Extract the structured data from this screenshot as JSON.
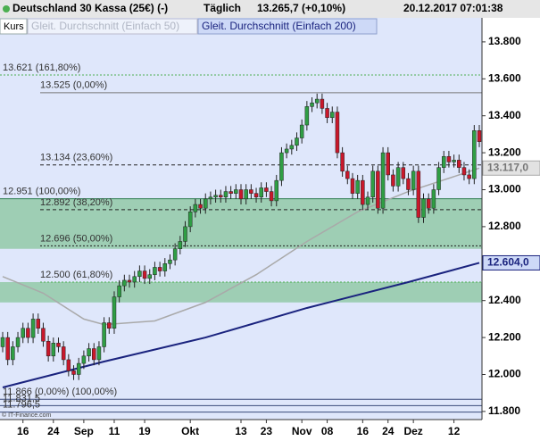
{
  "header": {
    "title": "Deutschland 30 Kassa (25€) (-)",
    "period": "Täglich",
    "quote": "13.265,7 (+0,10%)",
    "timestamp": "20.12.2017 07:01:38"
  },
  "legend": [
    "Kurs",
    "Gleit. Durchschnitt (Einfach 50)",
    "Gleit. Durchschnitt (Einfach 200)"
  ],
  "footer": "© IT-Finance.com",
  "chart_data": {
    "type": "candlestick",
    "ylim": [
      11756,
      13843
    ],
    "yticks": [
      {
        "value": 11800,
        "label": "11.800"
      },
      {
        "value": 12000,
        "label": "12.000"
      },
      {
        "value": 12200,
        "label": "12.200"
      },
      {
        "value": 12400,
        "label": "12.400"
      },
      {
        "value": 12600,
        "label": "12.600"
      },
      {
        "value": 12800,
        "label": "12.800"
      },
      {
        "value": 13000,
        "label": "13.000"
      },
      {
        "value": 13200,
        "label": "13.200"
      },
      {
        "value": 13400,
        "label": "13.400"
      },
      {
        "value": 13600,
        "label": "13.600"
      },
      {
        "value": 13800,
        "label": "13.800"
      }
    ],
    "xticks": [
      {
        "value": 4,
        "label": "16"
      },
      {
        "value": 10,
        "label": "24"
      },
      {
        "value": 16,
        "label": "Sep"
      },
      {
        "value": 22,
        "label": "11"
      },
      {
        "value": 28,
        "label": "19"
      },
      {
        "value": 37,
        "label": "Okt"
      },
      {
        "value": 47,
        "label": "13"
      },
      {
        "value": 52,
        "label": "23"
      },
      {
        "value": 59,
        "label": "Nov"
      },
      {
        "value": 64,
        "label": "08"
      },
      {
        "value": 71,
        "label": "16"
      },
      {
        "value": 76,
        "label": "24"
      },
      {
        "value": 81,
        "label": "Dez"
      },
      {
        "value": 89,
        "label": "12"
      }
    ],
    "up_color": "#2f9e44",
    "down_color": "#c9182b",
    "open": [
      12150,
      12200,
      12080,
      12150,
      12200,
      12250,
      12200,
      12300,
      12250,
      12180,
      12100,
      12170,
      12150,
      12080,
      12020,
      12000,
      12060,
      12100,
      12140,
      12080,
      12150,
      12280,
      12250,
      12420,
      12480,
      12510,
      12500,
      12530,
      12560,
      12520,
      12540,
      12580,
      12560,
      12600,
      12620,
      12680,
      12720,
      12800,
      12880,
      12920,
      12900,
      12950,
      12960,
      12970,
      12960,
      12990,
      12980,
      13000,
      12950,
      13000,
      12980,
      12960,
      13010,
      12990,
      12940,
      13050,
      13200,
      13220,
      13240,
      13280,
      13350,
      13450,
      13470,
      13490,
      13440,
      13390,
      13420,
      13200,
      13100,
      13060,
      12980,
      13050,
      12920,
      12960,
      13100,
      12900,
      13200,
      13080,
      13020,
      13120,
      13060,
      13000,
      13100,
      12850,
      12950,
      12900,
      13000,
      13120,
      13180,
      13150,
      13160,
      13120,
      13080,
      13060,
      13320
    ],
    "high": [
      12230,
      12230,
      12180,
      12230,
      12280,
      12280,
      12330,
      12330,
      12280,
      12210,
      12200,
      12200,
      12180,
      12110,
      12050,
      12090,
      12130,
      12170,
      12170,
      12180,
      12310,
      12310,
      12450,
      12510,
      12540,
      12540,
      12560,
      12590,
      12590,
      12570,
      12610,
      12610,
      12630,
      12650,
      12710,
      12750,
      12830,
      12910,
      12950,
      12950,
      12980,
      12990,
      13000,
      13000,
      13020,
      13020,
      13030,
      13030,
      13030,
      13030,
      13010,
      13040,
      13040,
      13020,
      13080,
      13230,
      13250,
      13270,
      13310,
      13380,
      13480,
      13500,
      13520,
      13520,
      13470,
      13450,
      13450,
      13230,
      13130,
      13090,
      13080,
      13080,
      12990,
      13130,
      13130,
      13230,
      13230,
      13110,
      13150,
      13150,
      13090,
      13130,
      13130,
      12980,
      12980,
      13030,
      13150,
      13210,
      13210,
      13190,
      13190,
      13150,
      13110,
      13350,
      13350
    ],
    "low": [
      12120,
      12050,
      12050,
      12120,
      12170,
      12170,
      12170,
      12220,
      12150,
      12070,
      12070,
      12120,
      12050,
      11990,
      11970,
      11970,
      12030,
      12070,
      12050,
      12050,
      12120,
      12220,
      12220,
      12390,
      12450,
      12470,
      12470,
      12500,
      12490,
      12490,
      12510,
      12530,
      12530,
      12570,
      12590,
      12650,
      12690,
      12770,
      12850,
      12870,
      12870,
      12920,
      12930,
      12930,
      12930,
      12950,
      12950,
      12920,
      12920,
      12950,
      12930,
      12930,
      12960,
      12910,
      12910,
      13020,
      13170,
      13190,
      13210,
      13250,
      13320,
      13420,
      13440,
      13410,
      13360,
      13360,
      13170,
      13070,
      13030,
      12950,
      12950,
      12890,
      12890,
      12930,
      12870,
      12870,
      13050,
      12990,
      12990,
      13030,
      12970,
      12970,
      12820,
      12820,
      12870,
      12870,
      12970,
      13090,
      13120,
      13120,
      13090,
      13050,
      13030,
      13030,
      13230
    ],
    "close": [
      12200,
      12080,
      12150,
      12200,
      12250,
      12200,
      12300,
      12250,
      12180,
      12100,
      12170,
      12150,
      12080,
      12020,
      12000,
      12060,
      12100,
      12140,
      12080,
      12150,
      12280,
      12250,
      12420,
      12480,
      12510,
      12500,
      12530,
      12560,
      12520,
      12540,
      12580,
      12560,
      12600,
      12620,
      12680,
      12720,
      12800,
      12880,
      12920,
      12900,
      12950,
      12960,
      12970,
      12960,
      12990,
      12980,
      13000,
      12950,
      13000,
      12980,
      12960,
      13010,
      12990,
      12940,
      13050,
      13200,
      13220,
      13240,
      13280,
      13350,
      13450,
      13470,
      13490,
      13440,
      13390,
      13420,
      13200,
      13100,
      13060,
      12980,
      13050,
      12920,
      12960,
      13100,
      12900,
      13200,
      13080,
      13020,
      13120,
      13060,
      13000,
      13100,
      12850,
      12950,
      12900,
      13000,
      13120,
      13180,
      13150,
      13160,
      13120,
      13080,
      13060,
      13320,
      13260
    ],
    "series": [
      {
        "name": "Gleit. Durchschnitt (Einfach 50)",
        "color": "#a9a9a9",
        "x": [
          0,
          8,
          16,
          20,
          30,
          40,
          50,
          60,
          70,
          80,
          90,
          94
        ],
        "values": [
          12530,
          12440,
          12300,
          12270,
          12290,
          12390,
          12540,
          12720,
          12880,
          12990,
          13080,
          13117
        ],
        "last_label": "13.117,0"
      },
      {
        "name": "Gleit. Durchschnitt (Einfach 200)",
        "color": "#1a237e",
        "x": [
          0,
          20,
          40,
          60,
          80,
          94
        ],
        "values": [
          11930,
          12070,
          12200,
          12360,
          12500,
          12604
        ],
        "last_label": "12.604,0"
      }
    ],
    "zones": [
      {
        "from": 12680,
        "to": 12951,
        "color": "#93c9a7"
      },
      {
        "from": 12390,
        "to": 12500,
        "color": "#93c9a7"
      }
    ],
    "levels": [
      {
        "value": 13621,
        "label": "13.621 (161,80%)",
        "color": "#4caf50",
        "line": "dotted"
      },
      {
        "value": 13525,
        "label": "13.525 (0,00%)",
        "color": "#777777",
        "line": "solid"
      },
      {
        "value": 13134,
        "label": "13.134 (23,60%)",
        "color": "#222222",
        "line": "dashed"
      },
      {
        "value": 12951,
        "label": "12.951 (100,00%)",
        "color": "#2e7d4f",
        "line": "solid"
      },
      {
        "value": 12892,
        "label": "12.892 (38,20%)",
        "color": "#222222",
        "line": "dashed"
      },
      {
        "value": 12696,
        "label": "12.696 (50,00%)",
        "color": "#222222",
        "line": "dotted"
      },
      {
        "value": 12500,
        "label": "12.500 (61,80%)",
        "color": "#4caf50",
        "line": "dotted"
      },
      {
        "value": 11866,
        "label": "11.866 (0,00%) (100,00%)",
        "color": "#3a4a7a",
        "line": "solid"
      },
      {
        "value": 11831.5,
        "label": "11.831,5",
        "color": "#3a4a7a",
        "line": "solid"
      },
      {
        "value": 11796.5,
        "label": "11.796,5",
        "color": "#3a4a7a",
        "line": "solid"
      }
    ]
  }
}
